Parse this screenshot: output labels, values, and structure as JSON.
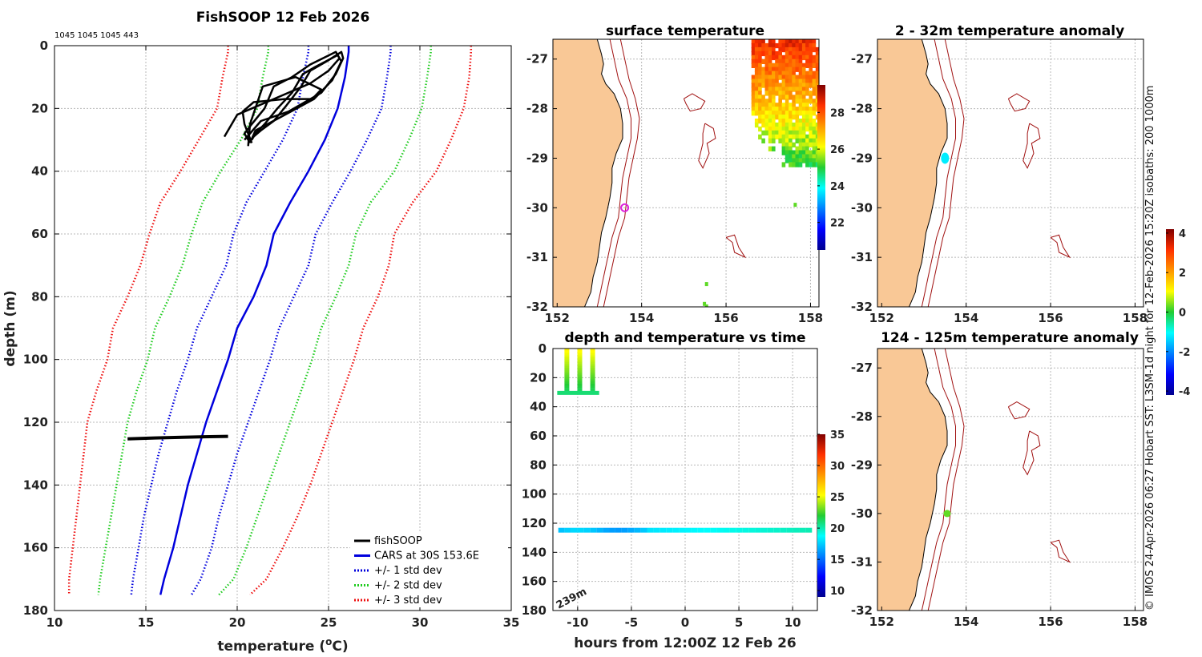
{
  "header": {
    "title": "FishSOOP 12 Feb 2026",
    "counts": "1045 1045 1045 443"
  },
  "credit": "© IMOS 24-Apr-2026 06:27 Hobart SST: L3SM-1d night for 12-Feb-2026 15:20Z isobaths: 200  1000m",
  "colors": {
    "land": "#F9C896",
    "isobath": "#A01010",
    "fishsoop": "#000000",
    "cars": "#0000DD",
    "std1": "#0000DD",
    "std2": "#22CC22",
    "std3": "#EE1111",
    "marker": "#DD22DD"
  },
  "chart_data": [
    {
      "id": "profile",
      "type": "line",
      "title": "",
      "xlabel": "temperature (",
      "xlabel_sup": "o",
      "xlabel_end": "C)",
      "ylabel": "depth (m)",
      "xlim": [
        10,
        35
      ],
      "ylim": [
        180,
        0
      ],
      "x_ticks": [
        10,
        15,
        20,
        25,
        30,
        35
      ],
      "y_ticks": [
        0,
        20,
        40,
        60,
        80,
        100,
        120,
        140,
        160,
        180
      ],
      "depth": [
        0,
        2,
        10,
        20,
        30,
        40,
        50,
        60,
        70,
        80,
        90,
        100,
        110,
        120,
        130,
        140,
        150,
        160,
        170,
        175
      ],
      "series": [
        {
          "name": "CARS at 30S 153.6E",
          "style": "solid",
          "color_key": "cars",
          "x": [
            26.1,
            26.1,
            25.9,
            25.5,
            24.8,
            23.9,
            22.9,
            22.0,
            21.6,
            20.9,
            20.0,
            19.5,
            18.9,
            18.3,
            17.8,
            17.3,
            16.9,
            16.5,
            16.0,
            15.8
          ]
        },
        {
          "name": "+/- 1 std dev",
          "style": "dotted",
          "color_key": "std1",
          "x": [
            23.9,
            23.9,
            23.6,
            23.3,
            22.5,
            21.5,
            20.5,
            19.8,
            19.4,
            18.6,
            17.8,
            17.3,
            16.7,
            16.2,
            15.7,
            15.3,
            14.9,
            14.6,
            14.3,
            14.2
          ]
        },
        {
          "name": "+/- 1 std dev",
          "style": "dotted",
          "color_key": "std1",
          "x": [
            28.4,
            28.4,
            28.2,
            27.9,
            27.1,
            26.2,
            25.2,
            24.3,
            23.9,
            23.1,
            22.3,
            21.8,
            21.2,
            20.6,
            20.0,
            19.5,
            19.0,
            18.6,
            18.0,
            17.5
          ]
        },
        {
          "name": "+/- 2 std dev",
          "style": "dotted",
          "color_key": "std2",
          "x": [
            21.7,
            21.7,
            21.4,
            21.1,
            20.2,
            19.1,
            18.1,
            17.5,
            17.0,
            16.3,
            15.5,
            15.1,
            14.5,
            14.0,
            13.7,
            13.4,
            13.1,
            12.8,
            12.5,
            12.4
          ]
        },
        {
          "name": "+/- 2 std dev",
          "style": "dotted",
          "color_key": "std2",
          "x": [
            30.6,
            30.6,
            30.4,
            30.1,
            29.4,
            28.6,
            27.3,
            26.5,
            26.1,
            25.4,
            24.6,
            24.1,
            23.5,
            22.9,
            22.3,
            21.7,
            21.1,
            20.5,
            19.8,
            19.0
          ]
        },
        {
          "name": "+/- 3 std dev",
          "style": "dotted",
          "color_key": "std3",
          "x": [
            19.5,
            19.5,
            19.2,
            18.9,
            17.9,
            16.9,
            15.8,
            15.2,
            14.7,
            14.0,
            13.2,
            12.9,
            12.3,
            11.8,
            11.6,
            11.4,
            11.2,
            11.0,
            10.8,
            10.8
          ]
        },
        {
          "name": "+/- 3 std dev",
          "style": "dotted",
          "color_key": "std3",
          "x": [
            32.8,
            32.8,
            32.7,
            32.4,
            31.7,
            30.9,
            29.6,
            28.6,
            28.3,
            27.7,
            26.9,
            26.4,
            25.8,
            25.2,
            24.6,
            24.0,
            23.3,
            22.5,
            21.6,
            20.7
          ]
        }
      ],
      "fishsoop_segments": [
        {
          "t": [
            19.3,
            20.0,
            22.0,
            24.0,
            25.0,
            25.6,
            25.4,
            24.0,
            23.0,
            22.0,
            21.5,
            20.8,
            20.4,
            20.7
          ],
          "d": [
            29,
            22,
            17,
            12,
            8,
            4,
            2,
            6,
            10,
            13,
            20,
            25,
            28,
            31
          ]
        },
        {
          "t": [
            20.7,
            21.0,
            22.3,
            24.2,
            25.2,
            25.7,
            25.5,
            24.2,
            23.6,
            23.0,
            22.2,
            21.5,
            21.0,
            20.8
          ],
          "d": [
            31,
            27,
            23,
            17,
            11,
            5,
            3,
            7,
            9,
            15,
            20,
            25,
            28,
            30
          ]
        },
        {
          "t": [
            20.4,
            21.3,
            22.8,
            24.6,
            25.4,
            25.8,
            25.7,
            24.9,
            24.0,
            23.5,
            22.7,
            22.0,
            21.3,
            20.9
          ],
          "d": [
            30,
            24,
            21,
            15,
            9,
            4,
            2,
            5,
            8,
            13,
            19,
            24,
            27,
            29
          ]
        },
        {
          "t": [
            20.8,
            20.4,
            20.3,
            20.9,
            22.6,
            24.1,
            24.6,
            23.2,
            21.4,
            20.7,
            20.6
          ],
          "d": [
            31,
            25,
            21,
            18,
            17,
            17,
            14,
            10,
            13,
            25,
            32
          ]
        }
      ],
      "fishsoop_deep": {
        "t": [
          14.0,
          15.5,
          17.0,
          18.5,
          19.5
        ],
        "d": [
          125.3,
          125.0,
          124.8,
          124.6,
          124.5
        ]
      },
      "legend": [
        {
          "label": "fishSOOP",
          "style": "solid",
          "color_key": "fishsoop"
        },
        {
          "label": "CARS at 30S 153.6E",
          "style": "solid",
          "color_key": "cars"
        },
        {
          "label": "+/- 1 std dev",
          "style": "dotted",
          "color_key": "std1"
        },
        {
          "label": "+/- 2 std dev",
          "style": "dotted",
          "color_key": "std2"
        },
        {
          "label": "+/- 3 std dev",
          "style": "dotted",
          "color_key": "std3"
        }
      ],
      "legend_position": "bottom-right"
    },
    {
      "id": "sst_map",
      "type": "heatmap",
      "title": "surface temperature",
      "xlim": [
        151.9,
        158.2
      ],
      "ylim": [
        -32,
        -26.6
      ],
      "x_ticks": [
        152,
        154,
        156,
        158
      ],
      "y_ticks": [
        -27,
        -28,
        -29,
        -30,
        -31,
        -32
      ],
      "colorbar": {
        "min": 20.5,
        "max": 29.5,
        "ticks": [
          22,
          24,
          26,
          28
        ]
      },
      "marker": {
        "lon": 153.6,
        "lat": -30.0
      },
      "sst_patch": {
        "lon": [
          156.6,
          158.2
        ],
        "lat": [
          -29.1,
          -26.6
        ],
        "temp_range": [
          25,
          28.5
        ]
      }
    },
    {
      "id": "anom_2_32",
      "type": "heatmap",
      "title": "2 - 32m temperature anomaly",
      "xlim": [
        151.9,
        158.2
      ],
      "ylim": [
        -32,
        -26.6
      ],
      "x_ticks": [
        152,
        154,
        156,
        158
      ],
      "y_ticks": [
        -27,
        -28,
        -29,
        -30,
        -31,
        -32
      ],
      "point": {
        "lon": 153.5,
        "lat": -29.0,
        "anomaly": -1.2
      }
    },
    {
      "id": "depth_time",
      "type": "scatter",
      "title": "depth and temperature vs time",
      "xlabel": "hours from 12:00Z 12 Feb 26",
      "xlim": [
        -12.3,
        12.3
      ],
      "ylim": [
        180,
        0
      ],
      "x_ticks": [
        -10,
        -5,
        0,
        5,
        10
      ],
      "y_ticks": [
        0,
        20,
        40,
        60,
        80,
        100,
        120,
        140,
        160,
        180
      ],
      "annotation": "239m",
      "colorbar": {
        "min": 9,
        "max": 35,
        "ticks": [
          10,
          15,
          20,
          25,
          30,
          35
        ]
      },
      "shallow_casts": [
        {
          "t": -11.0,
          "depth_range": [
            0,
            31
          ]
        },
        {
          "t": -9.8,
          "depth_range": [
            0,
            31
          ]
        },
        {
          "t": -8.6,
          "depth_range": [
            0,
            31
          ]
        }
      ],
      "shallow_track": {
        "t_range": [
          -11.9,
          -8.0
        ],
        "depth": 30.5,
        "temp": 21
      },
      "deep_track": {
        "t_range": [
          -11.8,
          11.8
        ],
        "depth": 124.8,
        "temp_start": 17,
        "temp_end": 20
      }
    },
    {
      "id": "anom_124_125",
      "type": "heatmap",
      "title": "124 - 125m temperature anomaly",
      "xlim": [
        151.9,
        158.2
      ],
      "ylim": [
        -32,
        -26.6
      ],
      "x_ticks": [
        152,
        154,
        156,
        158
      ],
      "y_ticks": [
        -27,
        -28,
        -29,
        -30,
        -31,
        -32
      ],
      "point": {
        "lon": 153.55,
        "lat": -30.0,
        "anomaly": 0.3
      },
      "colorbar": {
        "min": -4.2,
        "max": 4.2,
        "ticks": [
          -4,
          -2,
          0,
          2,
          4
        ]
      }
    }
  ]
}
